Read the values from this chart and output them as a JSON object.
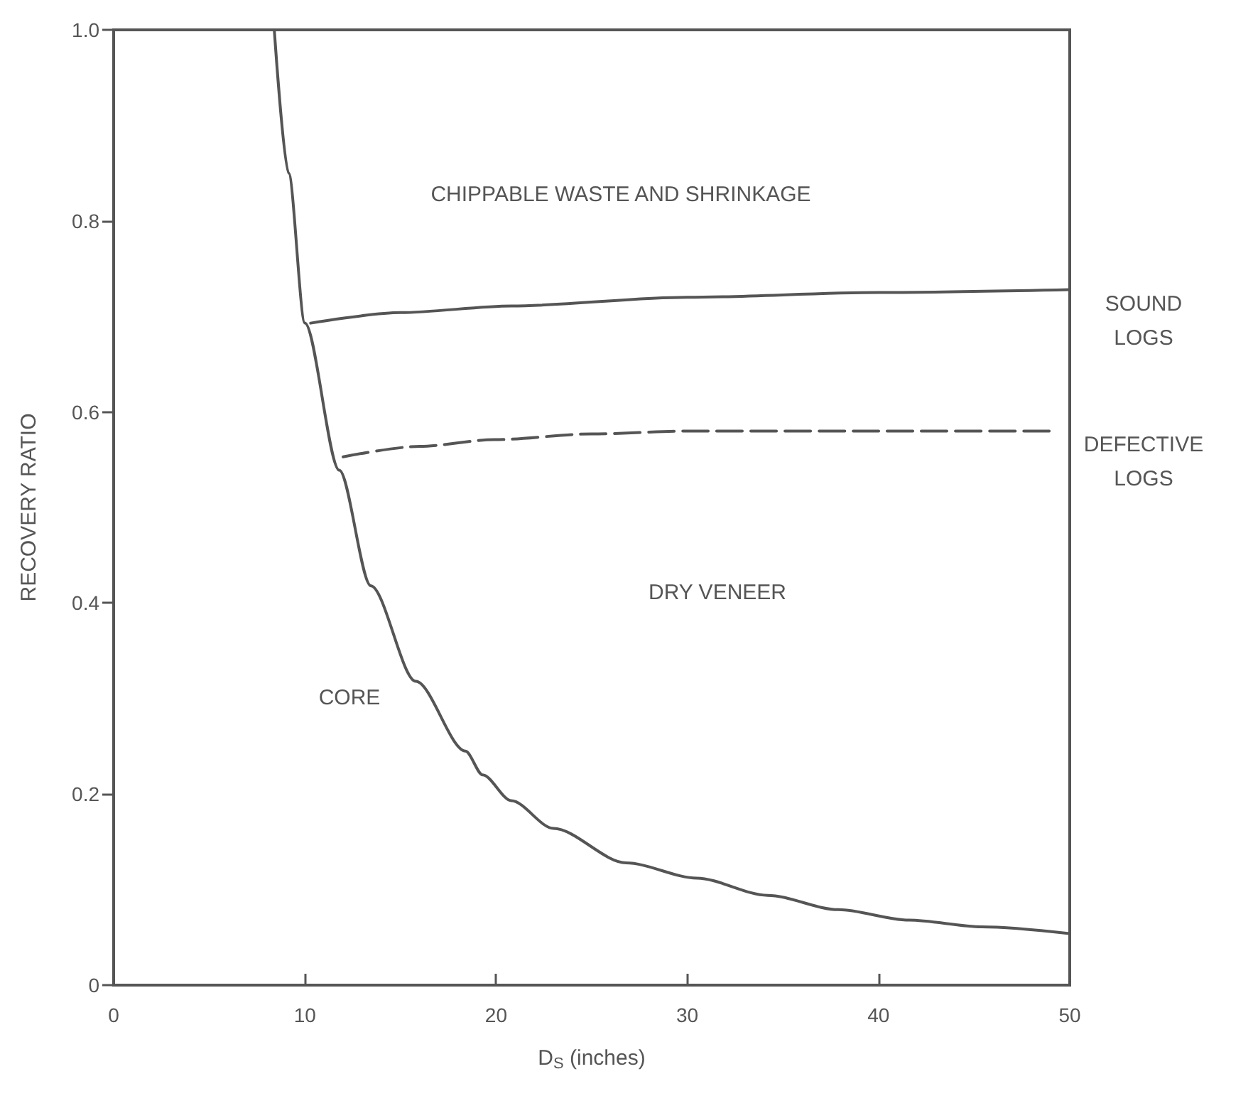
{
  "chart_data": {
    "type": "line",
    "xlabel": "D$_{S}$ (inches)",
    "ylabel": "RECOVERY RATIO",
    "xlim": [
      0,
      50
    ],
    "xticks": [
      0,
      10,
      20,
      30,
      40,
      50
    ],
    "ylim": [
      0,
      1
    ],
    "yticks": [
      0,
      0.2,
      0.4,
      0.6,
      0.8,
      {
        "value": 1,
        "label": "1.0"
      }
    ],
    "grid": false,
    "legend": false,
    "marker": "none",
    "series": [
      {
        "color": "#555555",
        "line_style": "solid",
        "x": [
          8.4,
          9.15,
          10.0,
          11.8,
          13.45,
          15.8,
          18.4,
          19.3,
          20.8,
          23.0,
          26.8,
          30.5,
          34.2,
          37.9,
          41.6,
          45.4,
          50
        ],
        "values": [
          1.0,
          0.85,
          0.693,
          0.539,
          0.418,
          0.318,
          0.245,
          0.22,
          0.193,
          0.164,
          0.128,
          0.112,
          0.094,
          0.079,
          0.068,
          0.061,
          0.054
        ]
      },
      {
        "name": "SOUND LOGS",
        "color": "#555555",
        "line_style": "solid",
        "x": [
          10.3,
          15,
          20.8,
          30,
          40,
          50
        ],
        "values": [
          0.693,
          0.704,
          0.711,
          0.72,
          0.725,
          0.728
        ]
      },
      {
        "name": "DEFECTIVE LOGS",
        "color": "#555555",
        "line_style": "dashed",
        "x": [
          12.0,
          16,
          19.9,
          25,
          30,
          40,
          49
        ],
        "values": [
          0.553,
          0.564,
          0.571,
          0.577,
          0.58,
          0.58,
          0.58
        ]
      }
    ],
    "annotations": [
      "CHIPPABLE WASTE AND SHRINKAGE",
      "DRY VENEER",
      "CORE"
    ]
  }
}
